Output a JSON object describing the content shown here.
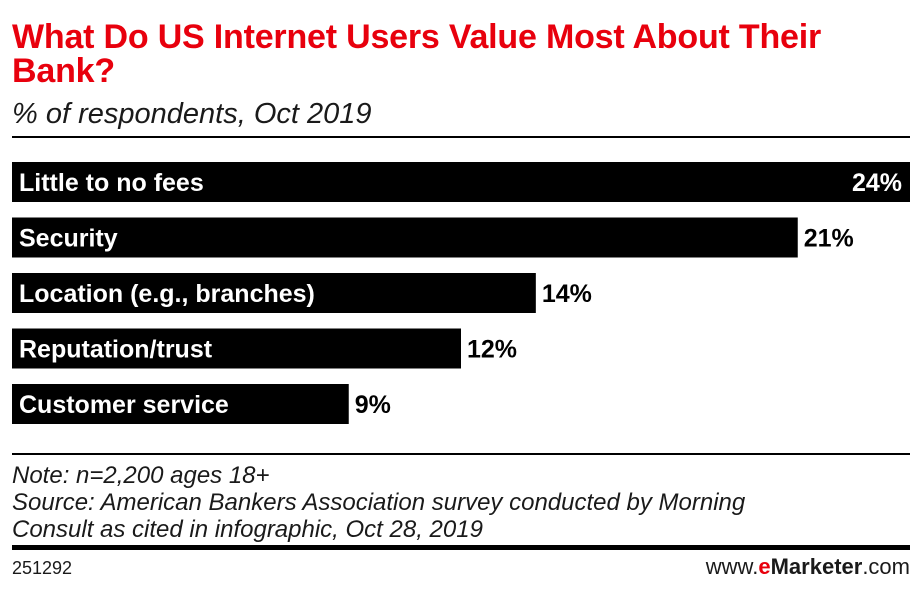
{
  "title": "What Do US Internet Users Value Most About Their Bank?",
  "subtitle": "% of respondents, Oct 2019",
  "chart_data": {
    "type": "bar",
    "orientation": "horizontal",
    "title": "What Do US Internet Users Value Most About Their Bank?",
    "subtitle": "% of respondents, Oct 2019",
    "categories": [
      "Little to no fees",
      "Security",
      "Location (e.g., branches)",
      "Reputation/trust",
      "Customer service"
    ],
    "values": [
      24,
      21,
      14,
      12,
      9
    ],
    "value_labels": [
      "24%",
      "21%",
      "14%",
      "12%",
      "9%"
    ],
    "unit": "%",
    "xlim": [
      0,
      24
    ],
    "bar_color": "#000000",
    "grid": false,
    "legend": "none"
  },
  "notes": {
    "note": "Note: n=2,200 ages 18+",
    "source_line1": "Source: American Bankers Association survey conducted by Morning",
    "source_line2": "Consult as cited in infographic, Oct 28, 2019"
  },
  "footer": {
    "chart_id": "251292",
    "brand_prefix": "www.",
    "brand_e": "e",
    "brand_name": "Marketer",
    "brand_suffix": ".com"
  },
  "colors": {
    "title": "#e8000d",
    "bar": "#000000",
    "brand_accent": "#e8000d"
  }
}
